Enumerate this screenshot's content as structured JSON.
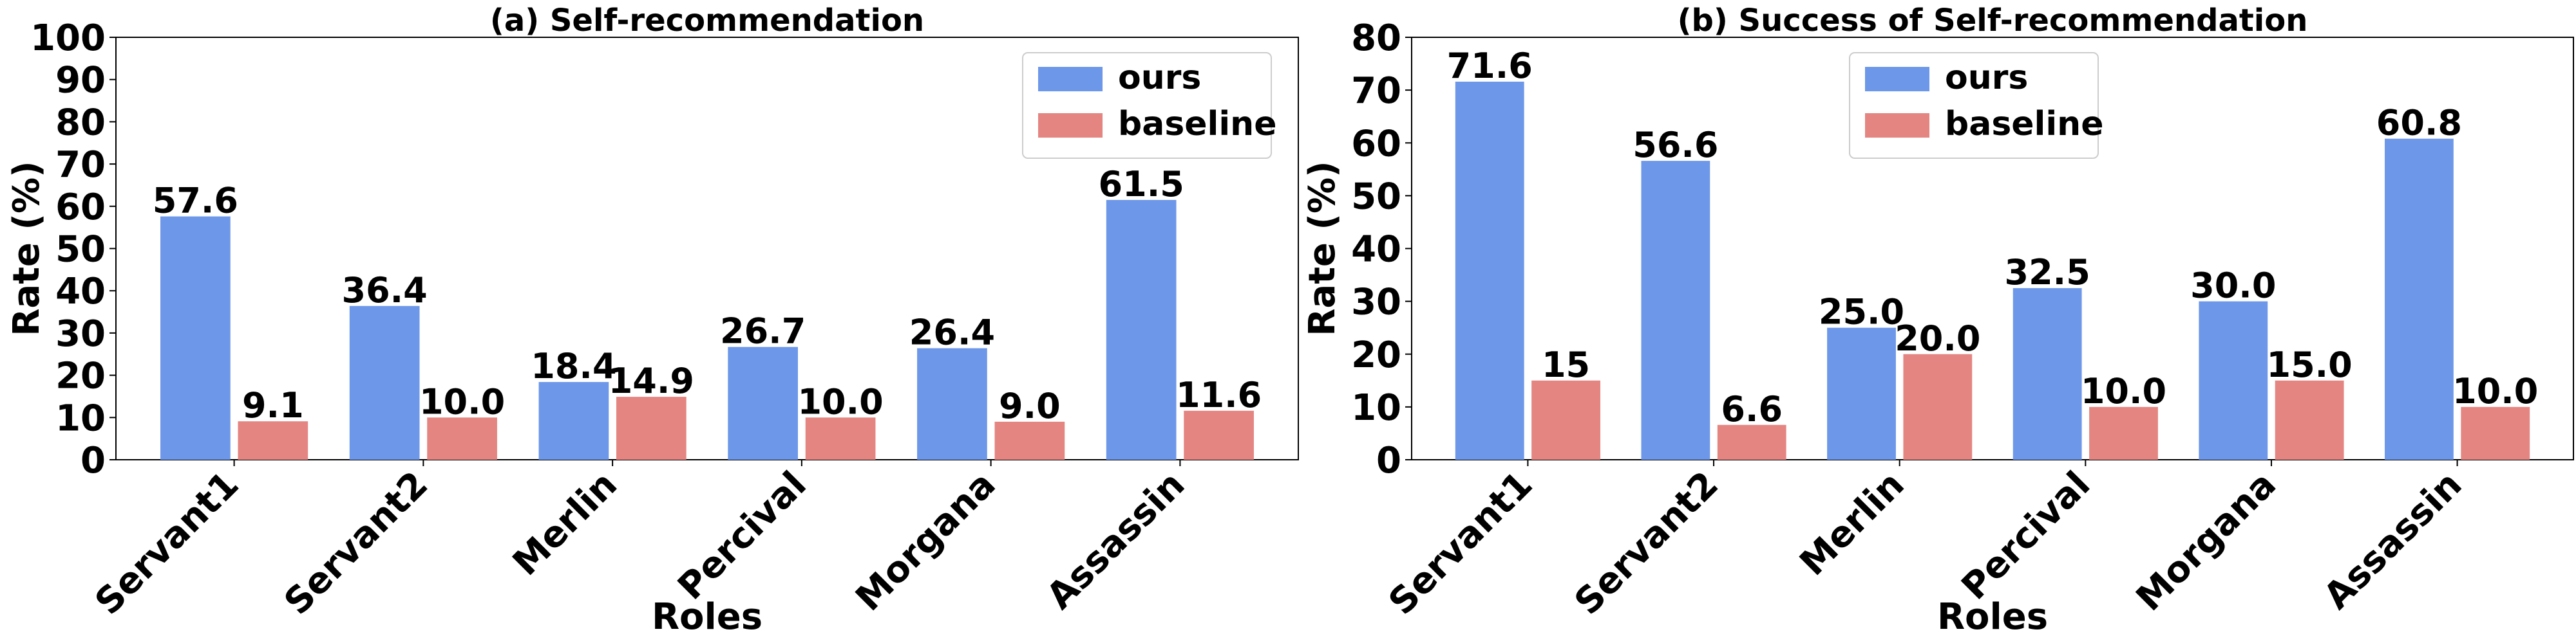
{
  "colors": {
    "ours": "#6d97e8",
    "baseline": "#e48581",
    "axis": "#000000",
    "background": "#ffffff"
  },
  "chart_data": [
    {
      "type": "bar",
      "title": "(a) Self-recommendation",
      "xlabel": "Roles",
      "ylabel": "Rate (%)",
      "categories": [
        "Servant1",
        "Servant2",
        "Merlin",
        "Percival",
        "Morgana",
        "Assassin"
      ],
      "series": [
        {
          "name": "ours",
          "values": [
            57.6,
            36.4,
            18.4,
            26.7,
            26.4,
            61.5
          ],
          "labels": [
            "57.6",
            "36.4",
            "18.4",
            "26.7",
            "26.4",
            "61.5"
          ]
        },
        {
          "name": "baseline",
          "values": [
            9.1,
            10.0,
            14.9,
            10.0,
            9.0,
            11.6
          ],
          "labels": [
            "9.1",
            "10.0",
            "14.9",
            "10.0",
            "9.0",
            "11.6"
          ]
        }
      ],
      "ylim": [
        0,
        100
      ],
      "yticks": [
        0,
        10,
        20,
        30,
        40,
        50,
        60,
        70,
        80,
        90,
        100
      ],
      "grid": false,
      "legend_position": "top-right"
    },
    {
      "type": "bar",
      "title": "(b) Success of Self-recommendation",
      "xlabel": "Roles",
      "ylabel": "Rate (%)",
      "categories": [
        "Servant1",
        "Servant2",
        "Merlin",
        "Percival",
        "Morgana",
        "Assassin"
      ],
      "series": [
        {
          "name": "ours",
          "values": [
            71.6,
            56.6,
            25.0,
            32.5,
            30.0,
            60.8
          ],
          "labels": [
            "71.6",
            "56.6",
            "25.0",
            "32.5",
            "30.0",
            "60.8"
          ]
        },
        {
          "name": "baseline",
          "values": [
            15,
            6.6,
            20.0,
            10.0,
            15.0,
            10.0
          ],
          "labels": [
            "15",
            "6.6",
            "20.0",
            "10.0",
            "15.0",
            "10.0"
          ]
        }
      ],
      "ylim": [
        0,
        80
      ],
      "yticks": [
        0,
        10,
        20,
        30,
        40,
        50,
        60,
        70,
        80
      ],
      "grid": false,
      "legend_position": "top-center"
    }
  ]
}
